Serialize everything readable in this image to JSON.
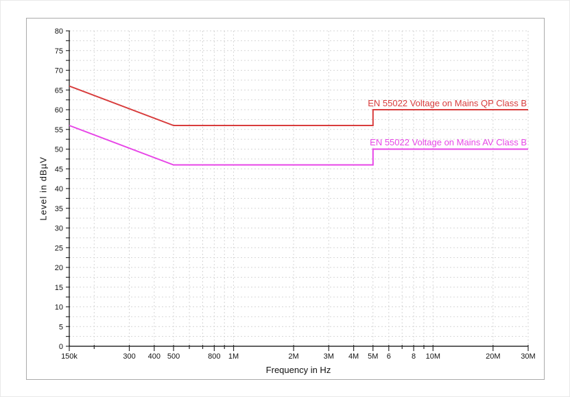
{
  "frame": {
    "border_color": "#a9a9a9",
    "background": "#ffffff"
  },
  "chart_data": {
    "type": "line",
    "title": "",
    "xlabel": "Frequency in Hz",
    "ylabel": "Level in dBµV",
    "x_scale": "log",
    "x_range_hz": [
      150000,
      30000000
    ],
    "ylim": [
      0,
      80
    ],
    "y_major_step": 5,
    "y_minor_step": 2.5,
    "grid": "dashed",
    "grid_color": "#d6d6d6",
    "axis_color": "#2b2b2b",
    "tick_text_color": "#111111",
    "x_ticks": [
      {
        "hz": 150000,
        "label": "150k"
      },
      {
        "hz": 200000,
        "label": ""
      },
      {
        "hz": 300000,
        "label": "300"
      },
      {
        "hz": 400000,
        "label": "400"
      },
      {
        "hz": 500000,
        "label": "500"
      },
      {
        "hz": 600000,
        "label": ""
      },
      {
        "hz": 700000,
        "label": ""
      },
      {
        "hz": 800000,
        "label": "800"
      },
      {
        "hz": 900000,
        "label": ""
      },
      {
        "hz": 1000000,
        "label": "1M"
      },
      {
        "hz": 2000000,
        "label": "2M"
      },
      {
        "hz": 3000000,
        "label": "3M"
      },
      {
        "hz": 4000000,
        "label": "4M"
      },
      {
        "hz": 5000000,
        "label": "5M"
      },
      {
        "hz": 6000000,
        "label": "6"
      },
      {
        "hz": 7000000,
        "label": ""
      },
      {
        "hz": 8000000,
        "label": "8"
      },
      {
        "hz": 9000000,
        "label": ""
      },
      {
        "hz": 10000000,
        "label": "10M"
      },
      {
        "hz": 20000000,
        "label": "20M"
      },
      {
        "hz": 30000000,
        "label": "30M"
      }
    ],
    "series": [
      {
        "name": "EN 55022 Voltage on Mains QP Class B",
        "color": "#d83c3c",
        "points_hz_dbuv": [
          [
            150000,
            66
          ],
          [
            500000,
            56
          ],
          [
            5000000,
            56
          ],
          [
            5000000,
            60
          ],
          [
            30000000,
            60
          ]
        ]
      },
      {
        "name": "EN 55022 Voltage on Mains AV Class B",
        "color": "#e746e7",
        "points_hz_dbuv": [
          [
            150000,
            56
          ],
          [
            500000,
            46
          ],
          [
            5000000,
            46
          ],
          [
            5000000,
            50
          ],
          [
            30000000,
            50
          ]
        ]
      }
    ],
    "legend_position": "inline-right"
  }
}
